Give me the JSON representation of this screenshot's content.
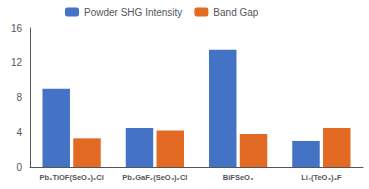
{
  "chart_data": {
    "type": "bar",
    "categories": [
      "Pb₂TiOF(SeO₃)₂Cl",
      "Pb₂GaF₂(SeO₃)₂Cl",
      "BiFSeO₃",
      "Li₇(TeO₃)₄F"
    ],
    "series": [
      {
        "name": "Powder SHG Intensity",
        "color": "#4472C4",
        "values": [
          9.0,
          4.5,
          13.5,
          3.0
        ]
      },
      {
        "name": "Band Gap",
        "color": "#E36A22",
        "values": [
          3.3,
          4.2,
          3.8,
          4.5
        ]
      }
    ],
    "ylim": [
      0,
      16
    ],
    "yticks": [
      0,
      4,
      8,
      12,
      16
    ],
    "grid": false,
    "legend": "upper left"
  }
}
